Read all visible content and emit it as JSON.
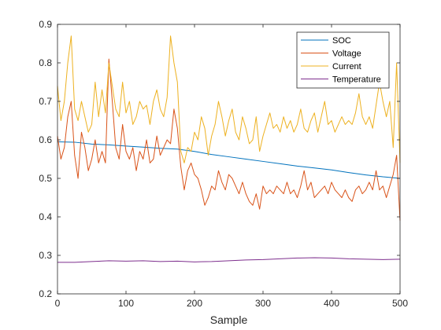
{
  "chart_data": {
    "type": "line",
    "xlabel": "Sample",
    "ylabel": "",
    "xlim": [
      0,
      500
    ],
    "ylim": [
      0.2,
      0.9
    ],
    "xticks": [
      "0",
      "100",
      "200",
      "300",
      "400",
      "500"
    ],
    "yticks": [
      "0.2",
      "0.3",
      "0.4",
      "0.5",
      "0.6",
      "0.7",
      "0.8",
      "0.9"
    ],
    "grid": false,
    "legend_position": "top-right",
    "series": [
      {
        "name": "SOC",
        "color": "#0072BD",
        "x": [
          0,
          25,
          50,
          75,
          100,
          125,
          150,
          175,
          200,
          225,
          250,
          275,
          300,
          325,
          350,
          375,
          400,
          425,
          450,
          475,
          500
        ],
        "y": [
          0.595,
          0.594,
          0.589,
          0.587,
          0.584,
          0.581,
          0.578,
          0.576,
          0.57,
          0.562,
          0.556,
          0.55,
          0.544,
          0.538,
          0.532,
          0.527,
          0.522,
          0.515,
          0.509,
          0.504,
          0.5
        ]
      },
      {
        "name": "Voltage",
        "color": "#D95319",
        "x": [
          0,
          5,
          10,
          15,
          20,
          25,
          30,
          35,
          40,
          45,
          50,
          55,
          60,
          65,
          70,
          75,
          80,
          85,
          90,
          95,
          100,
          105,
          110,
          115,
          120,
          125,
          130,
          135,
          140,
          145,
          150,
          155,
          160,
          165,
          170,
          175,
          180,
          185,
          190,
          195,
          200,
          205,
          210,
          215,
          220,
          225,
          230,
          235,
          240,
          245,
          250,
          255,
          260,
          265,
          270,
          275,
          280,
          285,
          290,
          295,
          300,
          305,
          310,
          315,
          320,
          325,
          330,
          335,
          340,
          345,
          350,
          355,
          360,
          365,
          370,
          375,
          380,
          385,
          390,
          395,
          400,
          405,
          410,
          415,
          420,
          425,
          430,
          435,
          440,
          445,
          450,
          455,
          460,
          465,
          470,
          475,
          480,
          485,
          490,
          495,
          500
        ],
        "y": [
          0.61,
          0.55,
          0.58,
          0.66,
          0.7,
          0.56,
          0.5,
          0.62,
          0.58,
          0.52,
          0.55,
          0.6,
          0.54,
          0.57,
          0.54,
          0.81,
          0.7,
          0.58,
          0.55,
          0.64,
          0.57,
          0.55,
          0.58,
          0.52,
          0.57,
          0.55,
          0.6,
          0.54,
          0.55,
          0.61,
          0.56,
          0.58,
          0.6,
          0.59,
          0.68,
          0.63,
          0.53,
          0.47,
          0.52,
          0.54,
          0.51,
          0.5,
          0.47,
          0.43,
          0.45,
          0.48,
          0.47,
          0.52,
          0.49,
          0.47,
          0.51,
          0.5,
          0.48,
          0.46,
          0.49,
          0.46,
          0.44,
          0.43,
          0.46,
          0.42,
          0.48,
          0.46,
          0.47,
          0.46,
          0.48,
          0.47,
          0.46,
          0.49,
          0.46,
          0.47,
          0.45,
          0.48,
          0.52,
          0.47,
          0.49,
          0.45,
          0.46,
          0.47,
          0.48,
          0.46,
          0.49,
          0.47,
          0.46,
          0.45,
          0.47,
          0.45,
          0.44,
          0.47,
          0.48,
          0.46,
          0.47,
          0.49,
          0.47,
          0.52,
          0.47,
          0.48,
          0.45,
          0.48,
          0.51,
          0.56,
          0.39
        ]
      },
      {
        "name": "Current",
        "color": "#EDB120",
        "x": [
          0,
          5,
          10,
          15,
          20,
          25,
          30,
          35,
          40,
          45,
          50,
          55,
          60,
          65,
          70,
          75,
          80,
          85,
          90,
          95,
          100,
          105,
          110,
          115,
          120,
          125,
          130,
          135,
          140,
          145,
          150,
          155,
          160,
          165,
          170,
          175,
          180,
          185,
          190,
          195,
          200,
          205,
          210,
          215,
          220,
          225,
          230,
          235,
          240,
          245,
          250,
          255,
          260,
          265,
          270,
          275,
          280,
          285,
          290,
          295,
          300,
          305,
          310,
          315,
          320,
          325,
          330,
          335,
          340,
          345,
          350,
          355,
          360,
          365,
          370,
          375,
          380,
          385,
          390,
          395,
          400,
          405,
          410,
          415,
          420,
          425,
          430,
          435,
          440,
          445,
          450,
          455,
          460,
          465,
          470,
          475,
          480,
          485,
          490,
          495,
          500
        ],
        "y": [
          0.74,
          0.65,
          0.7,
          0.8,
          0.87,
          0.68,
          0.65,
          0.7,
          0.66,
          0.62,
          0.64,
          0.75,
          0.66,
          0.73,
          0.67,
          0.8,
          0.74,
          0.68,
          0.66,
          0.75,
          0.67,
          0.7,
          0.64,
          0.66,
          0.7,
          0.68,
          0.69,
          0.64,
          0.7,
          0.73,
          0.68,
          0.66,
          0.71,
          0.87,
          0.8,
          0.75,
          0.57,
          0.54,
          0.58,
          0.57,
          0.62,
          0.6,
          0.66,
          0.63,
          0.56,
          0.61,
          0.64,
          0.7,
          0.66,
          0.61,
          0.65,
          0.68,
          0.62,
          0.6,
          0.66,
          0.63,
          0.59,
          0.6,
          0.66,
          0.57,
          0.61,
          0.64,
          0.67,
          0.63,
          0.64,
          0.62,
          0.66,
          0.63,
          0.65,
          0.62,
          0.64,
          0.68,
          0.63,
          0.62,
          0.65,
          0.67,
          0.62,
          0.66,
          0.7,
          0.64,
          0.65,
          0.62,
          0.64,
          0.66,
          0.64,
          0.65,
          0.64,
          0.67,
          0.72,
          0.66,
          0.64,
          0.66,
          0.63,
          0.69,
          0.75,
          0.7,
          0.66,
          0.7,
          0.58,
          0.8,
          0.54
        ]
      },
      {
        "name": "Temperature",
        "color": "#7E2F8E",
        "x": [
          0,
          25,
          50,
          75,
          100,
          125,
          150,
          175,
          200,
          225,
          250,
          275,
          300,
          325,
          350,
          375,
          400,
          425,
          450,
          475,
          500
        ],
        "y": [
          0.282,
          0.282,
          0.284,
          0.286,
          0.285,
          0.286,
          0.284,
          0.285,
          0.283,
          0.284,
          0.286,
          0.288,
          0.289,
          0.291,
          0.293,
          0.294,
          0.293,
          0.291,
          0.29,
          0.289,
          0.29
        ]
      }
    ]
  }
}
